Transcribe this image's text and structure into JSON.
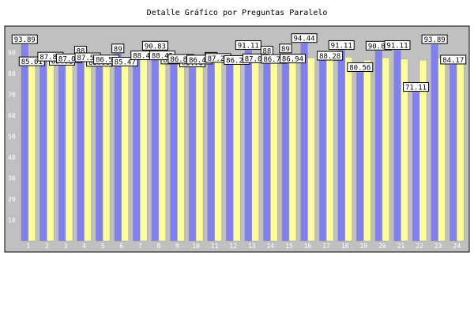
{
  "chart_data": {
    "type": "bar",
    "title": "Detalle Gráfico por Preguntas Paralelo",
    "xlabel": "",
    "ylabel": "",
    "ylim": [
      0,
      100
    ],
    "yticks": [
      10,
      20,
      30,
      40,
      50,
      60,
      70,
      80,
      90
    ],
    "grid": false,
    "legend": "none",
    "categories": [
      "1",
      "2",
      "3",
      "4",
      "5",
      "6",
      "7",
      "8",
      "9",
      "10",
      "11",
      "12",
      "13",
      "14",
      "15",
      "16",
      "17",
      "18",
      "19",
      "20",
      "21",
      "22",
      "23",
      "24"
    ],
    "series": [
      {
        "color": "#8080f0",
        "values": [
          93.89,
          88.5,
          83.61,
          88.5,
          83.06,
          89.5,
          89.0,
          90.83,
          84.19,
          82.78,
          85.5,
          86.5,
          91.11,
          88.5,
          89.5,
          94.44,
          89.5,
          91.11,
          80.56,
          90.83,
          91.11,
          71.11,
          93.89,
          84.17
        ],
        "labels": [
          "93.89",
          "",
          "83.61",
          "88",
          "83.06",
          "89",
          "",
          "90.83",
          "84.19",
          "82.78",
          "85",
          "",
          "91.11",
          "88",
          "89",
          "94.44",
          "",
          "91.11",
          "80.56",
          "90.83",
          "91.11",
          "71.11",
          "93.89",
          "84.17"
        ]
      },
      {
        "color": "#ffff99",
        "values": [
          85.61,
          87.86,
          87.06,
          87.54,
          86.51,
          85.47,
          88.47,
          88.45,
          86.8,
          86.46,
          87.23,
          86.25,
          87.05,
          86.78,
          86.94,
          87.5,
          88.28,
          87.8,
          86.39,
          87.5,
          86.9,
          86.39,
          87.22,
          86.5
        ],
        "labels": [
          "85.61",
          "87.86",
          "87.06",
          "87.54",
          "86.51",
          "85.47",
          "88.47",
          "88.45",
          "86.80",
          "86.46",
          "87.23",
          "86.25",
          "87.05",
          "86.78",
          "86.94",
          "",
          "88.28",
          "",
          "",
          "",
          "",
          "",
          "",
          ""
        ]
      }
    ]
  },
  "colors": {
    "plot_background": "#c0c0c0",
    "plot_border": "#000000",
    "axis_text": "#ffffff",
    "label_box": "#ffffff"
  }
}
